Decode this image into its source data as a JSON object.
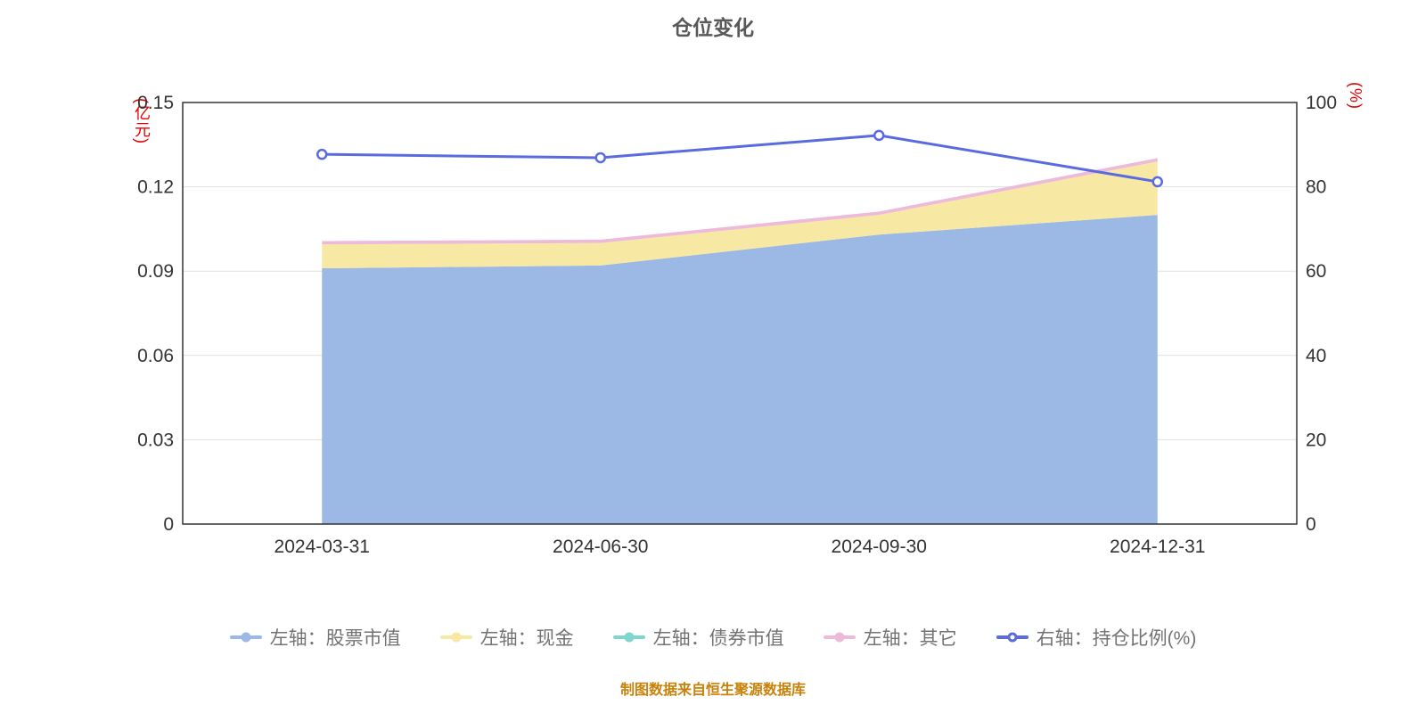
{
  "title": "仓位变化",
  "caption": "制图数据来自恒生聚源数据库",
  "chart_data": {
    "type": "area",
    "stacked": true,
    "grid": true,
    "legend_position": "bottom",
    "categories": [
      "2024-03-31",
      "2024-06-30",
      "2024-09-30",
      "2024-12-31"
    ],
    "left_axis": {
      "unit": "(亿元)",
      "min": 0,
      "max": 0.15,
      "ticks": [
        "0",
        "0.03",
        "0.06",
        "0.09",
        "0.12",
        "0.15"
      ]
    },
    "right_axis": {
      "unit": "(%)",
      "min": 0,
      "max": 100,
      "ticks": [
        "0",
        "20",
        "40",
        "60",
        "80",
        "100"
      ]
    },
    "series": [
      {
        "name": "左轴：股票市值",
        "yaxis": "left",
        "type": "area",
        "color": "#9cb8e4",
        "values": [
          0.091,
          0.092,
          0.103,
          0.11
        ]
      },
      {
        "name": "左轴：现金",
        "yaxis": "left",
        "type": "area",
        "color": "#f7e8a4",
        "values": [
          0.0085,
          0.008,
          0.007,
          0.019
        ]
      },
      {
        "name": "左轴：债券市值",
        "yaxis": "left",
        "type": "area",
        "color": "#7fd6ce",
        "values": [
          0,
          0,
          0,
          0
        ]
      },
      {
        "name": "左轴：其它",
        "yaxis": "left",
        "type": "area",
        "color": "#eebad9",
        "values": [
          0.0012,
          0.0012,
          0.0012,
          0.0012
        ]
      },
      {
        "name": "右轴：持仓比例(%)",
        "yaxis": "right",
        "type": "line",
        "color": "#5a6be0",
        "values": [
          87.7,
          86.9,
          92.2,
          81.2
        ]
      }
    ]
  }
}
